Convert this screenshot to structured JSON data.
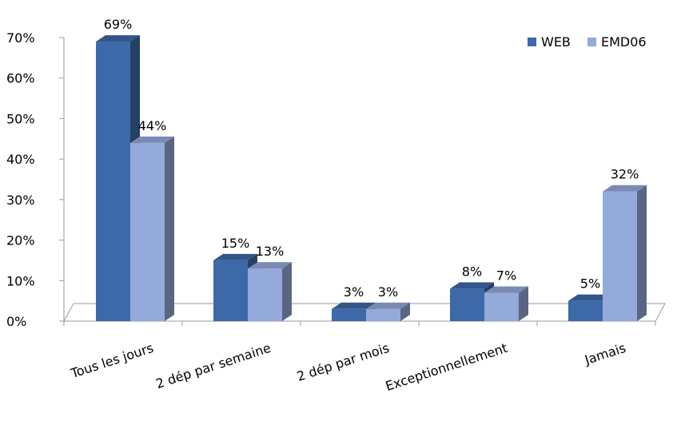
{
  "chart_data": {
    "type": "bar",
    "categories": [
      "Tous les jours",
      "2 dép par semaine",
      "2 dép par mois",
      "Exceptionnellement",
      "Jamais"
    ],
    "series": [
      {
        "name": "WEB",
        "values": [
          69,
          15,
          3,
          8,
          5
        ],
        "labels": [
          "69%",
          "15%",
          "3%",
          "8%",
          "5%"
        ],
        "color": "#3E69A8"
      },
      {
        "name": "EMD06",
        "values": [
          44,
          13,
          3,
          7,
          32
        ],
        "labels": [
          "44%",
          "13%",
          "3%",
          "7%",
          "32%"
        ],
        "color": "#94AADA"
      }
    ],
    "yticks": [
      0,
      10,
      20,
      30,
      40,
      50,
      60,
      70
    ],
    "ytick_labels": [
      "0%",
      "10%",
      "20%",
      "30%",
      "40%",
      "50%",
      "60%",
      "70%"
    ],
    "ylim": [
      0,
      70
    ],
    "grid": false,
    "legend_position": "top-right",
    "style": "3d-clustered-column"
  }
}
